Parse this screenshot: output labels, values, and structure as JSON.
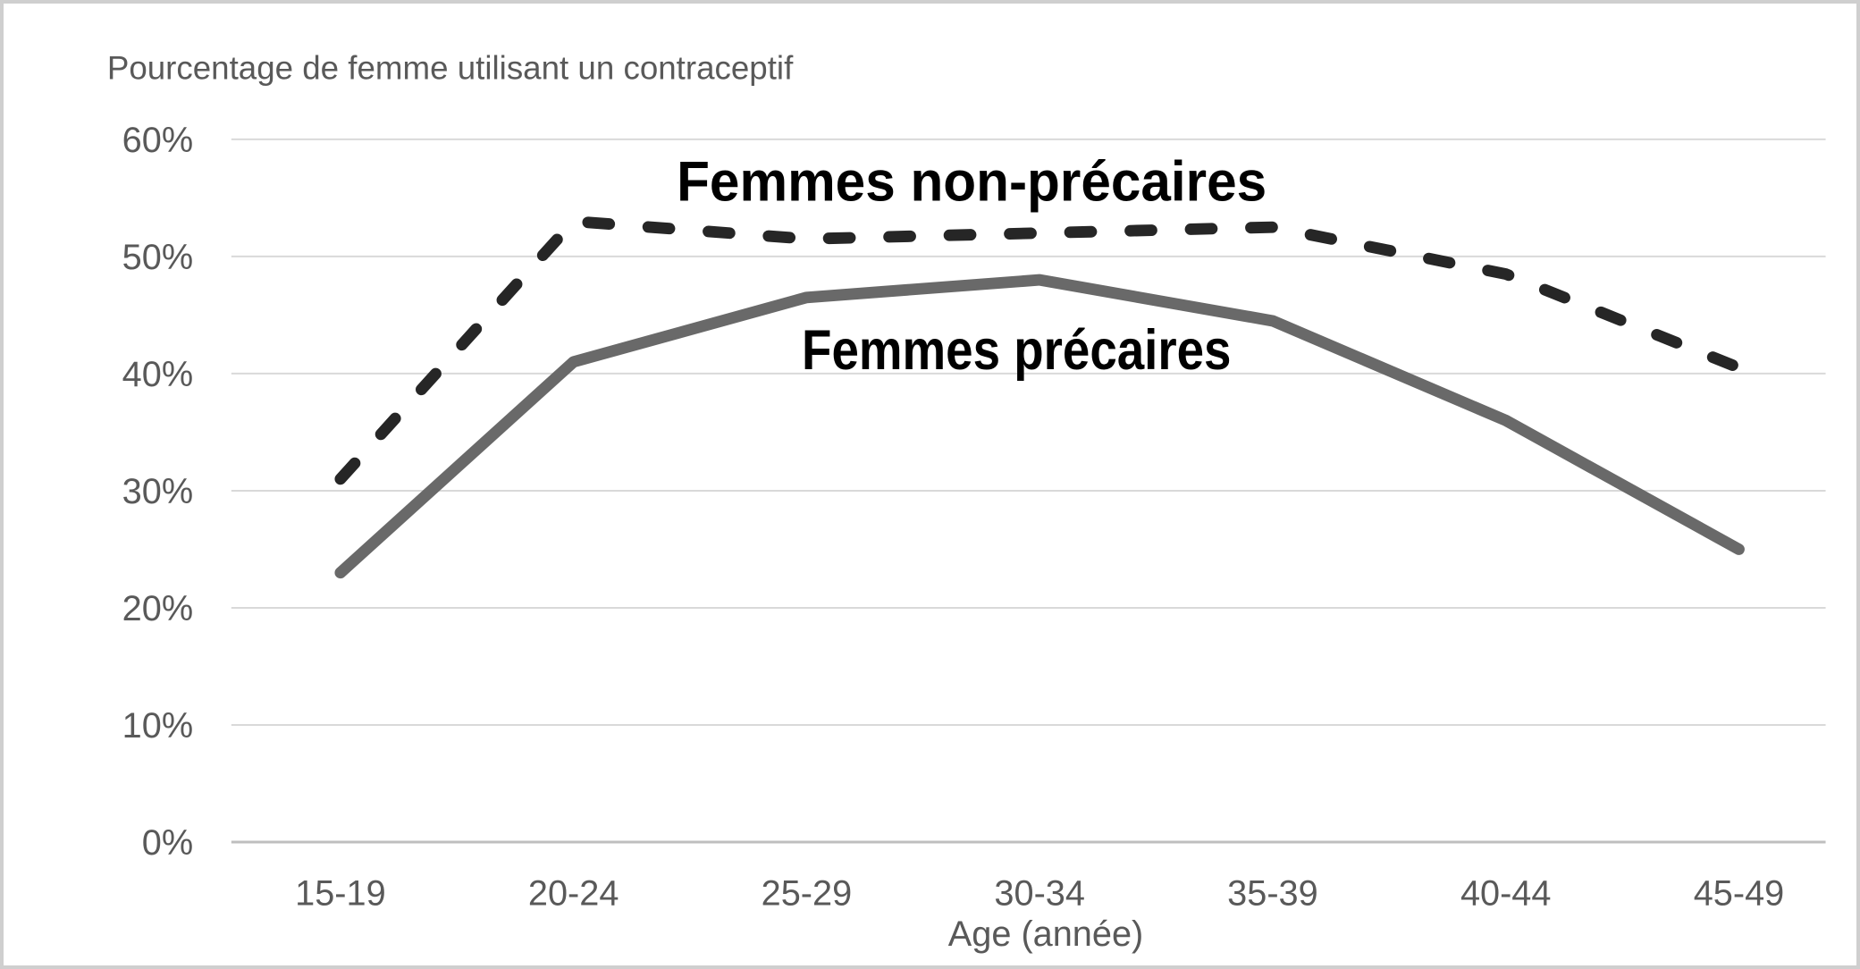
{
  "chart_data": {
    "type": "line",
    "title": "Pourcentage de femme utilisant un contraceptif",
    "xlabel": "Age (année)",
    "ylabel": "",
    "categories": [
      "15-19",
      "20-24",
      "25-29",
      "30-34",
      "35-39",
      "40-44",
      "45-49"
    ],
    "y_ticks": [
      0,
      10,
      20,
      30,
      40,
      50,
      60
    ],
    "y_tick_labels": [
      "0%",
      "10%",
      "20%",
      "30%",
      "40%",
      "50%",
      "60%"
    ],
    "ylim": [
      0,
      60
    ],
    "grid": true,
    "legend_position": "inline-annotations",
    "series": [
      {
        "name": "Femmes non-précaires",
        "values": [
          31,
          53,
          51.5,
          52,
          52.5,
          48.5,
          40.5
        ],
        "color": "#262626",
        "dash": true,
        "stroke_width": 13
      },
      {
        "name": "Femmes précaires",
        "values": [
          23,
          41,
          46.5,
          48,
          44.5,
          36,
          25
        ],
        "color": "#696969",
        "dash": false,
        "stroke_width": 13
      }
    ],
    "colors": {
      "background": "#ffffff",
      "frame_border": "#cfcfcf",
      "gridline": "#d9d9d9",
      "axis_line": "#bfbfbf",
      "axis_text": "#595959",
      "annotation_text": "#000000"
    }
  }
}
